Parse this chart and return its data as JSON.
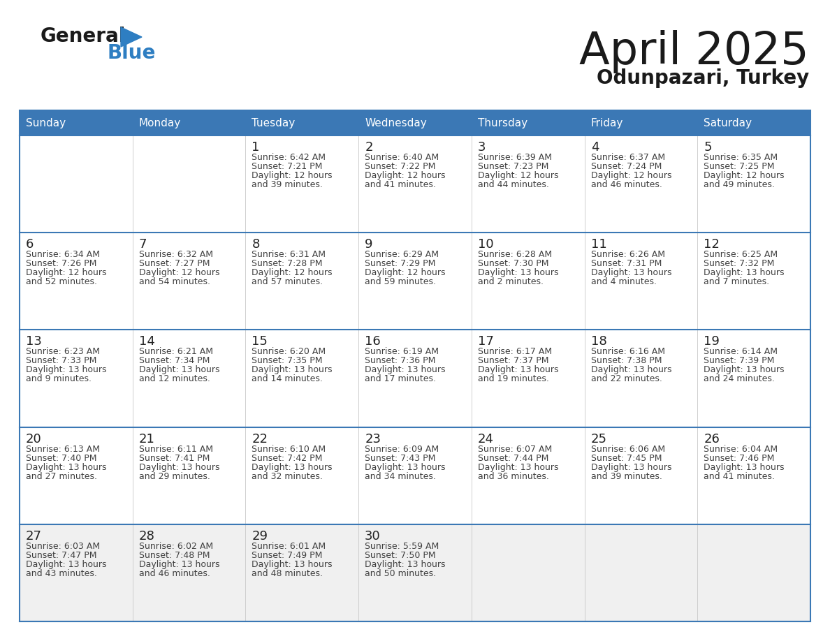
{
  "title": "April 2025",
  "subtitle": "Odunpazari, Turkey",
  "days_of_week": [
    "Sunday",
    "Monday",
    "Tuesday",
    "Wednesday",
    "Thursday",
    "Friday",
    "Saturday"
  ],
  "header_bg": "#3b78b5",
  "header_text": "#ffffff",
  "border_color": "#3b78b5",
  "row_border_color": "#3b78b5",
  "col_border_color": "#c8c8c8",
  "text_color": "#404040",
  "day_number_color": "#222222",
  "cell_bg_normal": "#ffffff",
  "cell_bg_last": "#f0f0f0",
  "calendar_data": [
    [
      null,
      null,
      {
        "day": "1",
        "sunrise": "6:42 AM",
        "sunset": "7:21 PM",
        "daylight1": "Daylight: 12 hours",
        "daylight2": "and 39 minutes."
      },
      {
        "day": "2",
        "sunrise": "6:40 AM",
        "sunset": "7:22 PM",
        "daylight1": "Daylight: 12 hours",
        "daylight2": "and 41 minutes."
      },
      {
        "day": "3",
        "sunrise": "6:39 AM",
        "sunset": "7:23 PM",
        "daylight1": "Daylight: 12 hours",
        "daylight2": "and 44 minutes."
      },
      {
        "day": "4",
        "sunrise": "6:37 AM",
        "sunset": "7:24 PM",
        "daylight1": "Daylight: 12 hours",
        "daylight2": "and 46 minutes."
      },
      {
        "day": "5",
        "sunrise": "6:35 AM",
        "sunset": "7:25 PM",
        "daylight1": "Daylight: 12 hours",
        "daylight2": "and 49 minutes."
      }
    ],
    [
      {
        "day": "6",
        "sunrise": "6:34 AM",
        "sunset": "7:26 PM",
        "daylight1": "Daylight: 12 hours",
        "daylight2": "and 52 minutes."
      },
      {
        "day": "7",
        "sunrise": "6:32 AM",
        "sunset": "7:27 PM",
        "daylight1": "Daylight: 12 hours",
        "daylight2": "and 54 minutes."
      },
      {
        "day": "8",
        "sunrise": "6:31 AM",
        "sunset": "7:28 PM",
        "daylight1": "Daylight: 12 hours",
        "daylight2": "and 57 minutes."
      },
      {
        "day": "9",
        "sunrise": "6:29 AM",
        "sunset": "7:29 PM",
        "daylight1": "Daylight: 12 hours",
        "daylight2": "and 59 minutes."
      },
      {
        "day": "10",
        "sunrise": "6:28 AM",
        "sunset": "7:30 PM",
        "daylight1": "Daylight: 13 hours",
        "daylight2": "and 2 minutes."
      },
      {
        "day": "11",
        "sunrise": "6:26 AM",
        "sunset": "7:31 PM",
        "daylight1": "Daylight: 13 hours",
        "daylight2": "and 4 minutes."
      },
      {
        "day": "12",
        "sunrise": "6:25 AM",
        "sunset": "7:32 PM",
        "daylight1": "Daylight: 13 hours",
        "daylight2": "and 7 minutes."
      }
    ],
    [
      {
        "day": "13",
        "sunrise": "6:23 AM",
        "sunset": "7:33 PM",
        "daylight1": "Daylight: 13 hours",
        "daylight2": "and 9 minutes."
      },
      {
        "day": "14",
        "sunrise": "6:21 AM",
        "sunset": "7:34 PM",
        "daylight1": "Daylight: 13 hours",
        "daylight2": "and 12 minutes."
      },
      {
        "day": "15",
        "sunrise": "6:20 AM",
        "sunset": "7:35 PM",
        "daylight1": "Daylight: 13 hours",
        "daylight2": "and 14 minutes."
      },
      {
        "day": "16",
        "sunrise": "6:19 AM",
        "sunset": "7:36 PM",
        "daylight1": "Daylight: 13 hours",
        "daylight2": "and 17 minutes."
      },
      {
        "day": "17",
        "sunrise": "6:17 AM",
        "sunset": "7:37 PM",
        "daylight1": "Daylight: 13 hours",
        "daylight2": "and 19 minutes."
      },
      {
        "day": "18",
        "sunrise": "6:16 AM",
        "sunset": "7:38 PM",
        "daylight1": "Daylight: 13 hours",
        "daylight2": "and 22 minutes."
      },
      {
        "day": "19",
        "sunrise": "6:14 AM",
        "sunset": "7:39 PM",
        "daylight1": "Daylight: 13 hours",
        "daylight2": "and 24 minutes."
      }
    ],
    [
      {
        "day": "20",
        "sunrise": "6:13 AM",
        "sunset": "7:40 PM",
        "daylight1": "Daylight: 13 hours",
        "daylight2": "and 27 minutes."
      },
      {
        "day": "21",
        "sunrise": "6:11 AM",
        "sunset": "7:41 PM",
        "daylight1": "Daylight: 13 hours",
        "daylight2": "and 29 minutes."
      },
      {
        "day": "22",
        "sunrise": "6:10 AM",
        "sunset": "7:42 PM",
        "daylight1": "Daylight: 13 hours",
        "daylight2": "and 32 minutes."
      },
      {
        "day": "23",
        "sunrise": "6:09 AM",
        "sunset": "7:43 PM",
        "daylight1": "Daylight: 13 hours",
        "daylight2": "and 34 minutes."
      },
      {
        "day": "24",
        "sunrise": "6:07 AM",
        "sunset": "7:44 PM",
        "daylight1": "Daylight: 13 hours",
        "daylight2": "and 36 minutes."
      },
      {
        "day": "25",
        "sunrise": "6:06 AM",
        "sunset": "7:45 PM",
        "daylight1": "Daylight: 13 hours",
        "daylight2": "and 39 minutes."
      },
      {
        "day": "26",
        "sunrise": "6:04 AM",
        "sunset": "7:46 PM",
        "daylight1": "Daylight: 13 hours",
        "daylight2": "and 41 minutes."
      }
    ],
    [
      {
        "day": "27",
        "sunrise": "6:03 AM",
        "sunset": "7:47 PM",
        "daylight1": "Daylight: 13 hours",
        "daylight2": "and 43 minutes."
      },
      {
        "day": "28",
        "sunrise": "6:02 AM",
        "sunset": "7:48 PM",
        "daylight1": "Daylight: 13 hours",
        "daylight2": "and 46 minutes."
      },
      {
        "day": "29",
        "sunrise": "6:01 AM",
        "sunset": "7:49 PM",
        "daylight1": "Daylight: 13 hours",
        "daylight2": "and 48 minutes."
      },
      {
        "day": "30",
        "sunrise": "5:59 AM",
        "sunset": "7:50 PM",
        "daylight1": "Daylight: 13 hours",
        "daylight2": "and 50 minutes."
      },
      null,
      null,
      null
    ]
  ]
}
